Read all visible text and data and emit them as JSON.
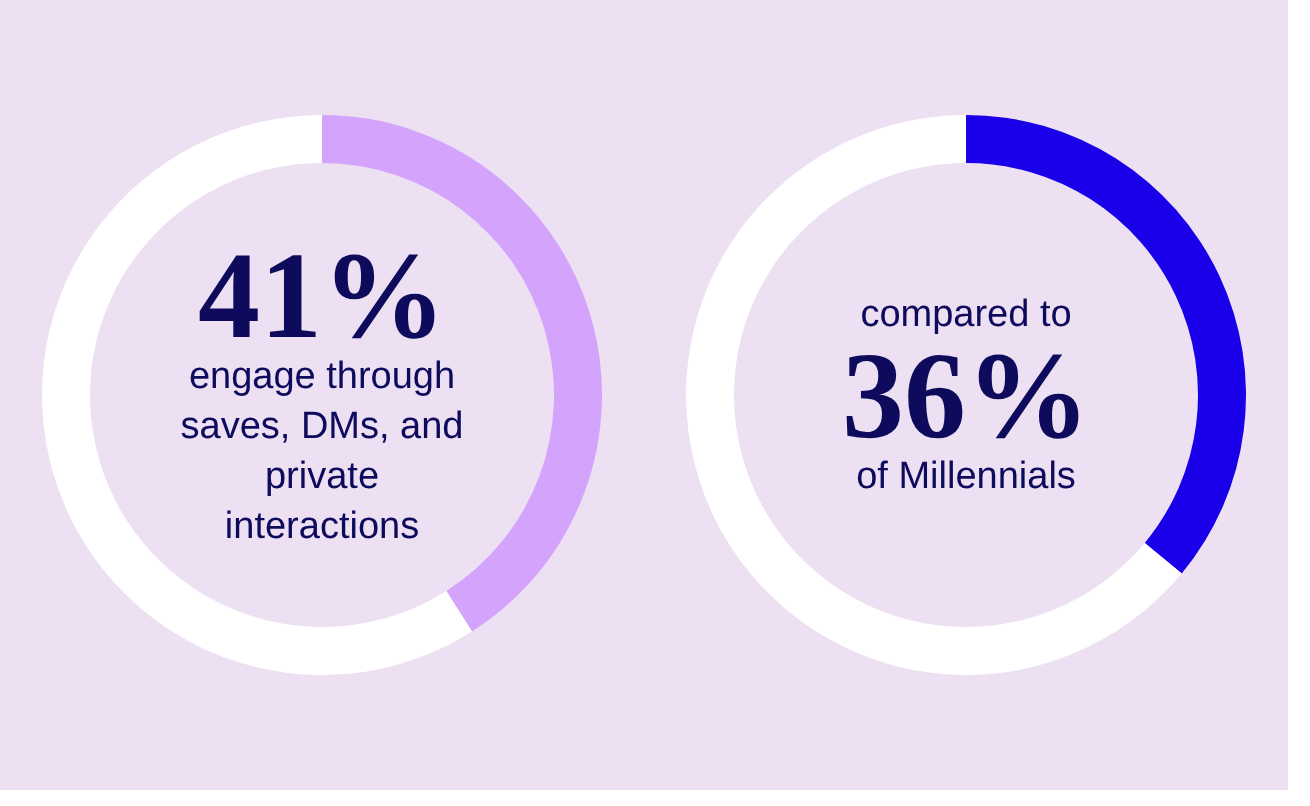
{
  "chart_data": [
    {
      "type": "donut",
      "categories": [
        null,
        null
      ],
      "values": [
        41,
        59
      ],
      "colors": [
        "#d4a3fb",
        "#ffffff"
      ],
      "title": "41%",
      "annotations": [
        "engage through",
        "saves, DMs, and",
        "private",
        "interactions"
      ]
    },
    {
      "type": "donut",
      "categories": [
        null,
        null
      ],
      "values": [
        36,
        64
      ],
      "colors": [
        "#1a00e8",
        "#ffffff"
      ],
      "subtitle": "compared to",
      "title": "36%",
      "annotations": [
        "of Millennials"
      ]
    }
  ]
}
